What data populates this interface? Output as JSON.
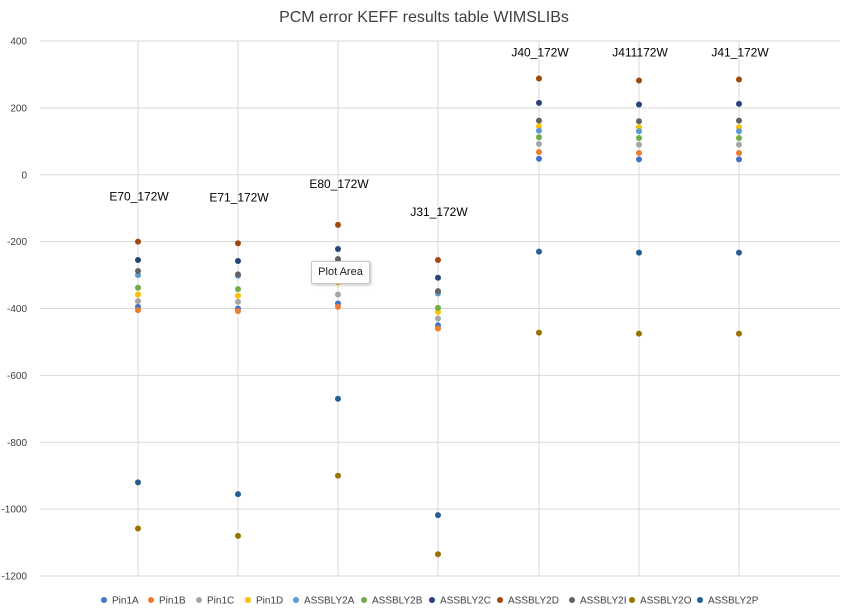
{
  "chart_data": {
    "type": "scatter",
    "title": "PCM error KEFF results table WIMSLIBs",
    "xlabel": "",
    "ylabel": "",
    "ylim": [
      -1200,
      400
    ],
    "yticks": [
      400,
      200,
      0,
      -200,
      -400,
      -600,
      -800,
      -1000,
      -1200
    ],
    "grid": true,
    "legend_position": "bottom",
    "categories": [
      "E70_172W",
      "E71_172W",
      "E80_172W",
      "J31_172W",
      "J40_172W",
      "J411172W",
      "J41_172W"
    ],
    "series": [
      {
        "name": "Pin1A",
        "color": "#4472c4",
        "values": [
          -395,
          -400,
          -385,
          -450,
          48,
          46,
          46
        ]
      },
      {
        "name": "Pin1B",
        "color": "#ed7d31",
        "values": [
          -405,
          -408,
          -395,
          -460,
          68,
          65,
          65
        ]
      },
      {
        "name": "Pin1C",
        "color": "#a5a5a5",
        "values": [
          -378,
          -380,
          -358,
          -430,
          92,
          90,
          90
        ]
      },
      {
        "name": "Pin1D",
        "color": "#ffc000",
        "values": [
          -358,
          -362,
          -322,
          -410,
          145,
          142,
          142
        ]
      },
      {
        "name": "ASSBLY2A",
        "color": "#5b9bd5",
        "values": [
          -300,
          -302,
          -258,
          -355,
          132,
          130,
          130
        ]
      },
      {
        "name": "ASSBLY2B",
        "color": "#70ad47",
        "values": [
          -338,
          -342,
          -305,
          -398,
          112,
          110,
          110
        ]
      },
      {
        "name": "ASSBLY2C",
        "color": "#264478",
        "values": [
          -255,
          -258,
          -222,
          -308,
          215,
          210,
          212
        ]
      },
      {
        "name": "ASSBLY2D",
        "color": "#9e480e",
        "values": [
          -200,
          -205,
          -150,
          -255,
          288,
          282,
          285
        ]
      },
      {
        "name": "ASSBLY2I",
        "color": "#636363",
        "values": [
          -288,
          -298,
          -252,
          -348,
          162,
          160,
          162
        ]
      },
      {
        "name": "ASSBLY2O",
        "color": "#997300",
        "values": [
          -1058,
          -1080,
          -900,
          -1135,
          -472,
          -475,
          -475
        ]
      },
      {
        "name": "ASSBLY2P",
        "color": "#255e91",
        "values": [
          -920,
          -955,
          -670,
          -1018,
          -230,
          -233,
          -233
        ]
      }
    ],
    "annotations": [
      {
        "text": "E70_172W",
        "category": "E70_172W",
        "y": -65
      },
      {
        "text": "E71_172W",
        "category": "E71_172W",
        "y": -68
      },
      {
        "text": "E80_172W",
        "category": "E80_172W",
        "y": -28
      },
      {
        "text": "J31_172W",
        "category": "J31_172W",
        "y": -112
      },
      {
        "text": "J40_172W",
        "category": "J40_172W",
        "y": 365
      },
      {
        "text": "J411172W",
        "category": "J411172W",
        "y": 365
      },
      {
        "text": "J41_172W",
        "category": "J41_172W",
        "y": 365
      }
    ]
  },
  "tooltip": {
    "text": "Plot Area"
  }
}
